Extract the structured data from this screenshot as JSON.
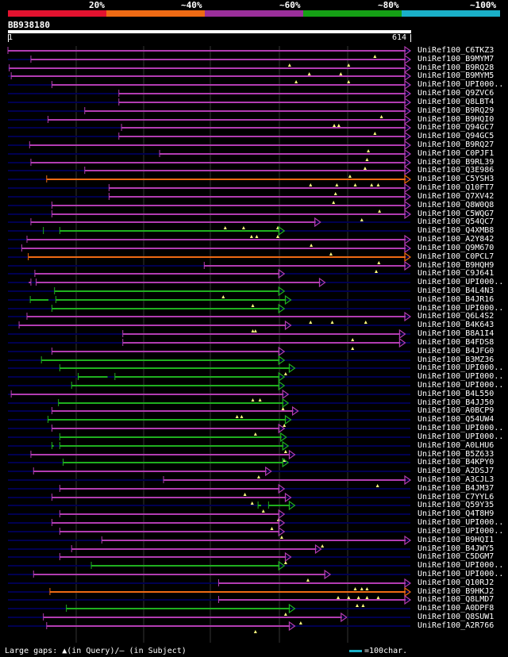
{
  "legend": {
    "labels": [
      "20%",
      "~40%",
      "~60%",
      "~80%",
      "~100%"
    ],
    "colors": [
      "#e3122f",
      "#ee6a14",
      "#9b2f9b",
      "#15a015",
      "#1ab0c8"
    ]
  },
  "query": {
    "id": "BB938180",
    "start": "1",
    "end": "614",
    "length": 614
  },
  "colors": {
    "purple": "#b23cb2",
    "orange": "#ee6a14",
    "green": "#1fb01f",
    "gap": "#ffff80",
    "background_line": "#000050"
  },
  "hits": [
    {
      "label": "UniRef100_C6TKZ3",
      "color": "purple",
      "segments": [
        [
          1,
          614
        ]
      ],
      "gaps": [
        560
      ]
    },
    {
      "label": "UniRef100_B9MYM7",
      "color": "purple",
      "segments": [
        [
          36,
          614
        ]
      ],
      "gaps": [
        430,
        520
      ]
    },
    {
      "label": "UniRef100_B9RQ28",
      "color": "purple",
      "segments": [
        [
          3,
          614
        ]
      ],
      "gaps": [
        460,
        508
      ]
    },
    {
      "label": "UniRef100_B9MYM5",
      "color": "purple",
      "segments": [
        [
          6,
          614
        ]
      ],
      "gaps": [
        440,
        520
      ]
    },
    {
      "label": "UniRef100_UPI000..",
      "color": "purple",
      "segments": [
        [
          68,
          614
        ]
      ],
      "gaps": []
    },
    {
      "label": "UniRef100_Q9ZVC6",
      "color": "purple",
      "segments": [
        [
          170,
          614
        ]
      ],
      "gaps": []
    },
    {
      "label": "UniRef100_Q8LBT4",
      "color": "purple",
      "segments": [
        [
          170,
          614
        ]
      ],
      "gaps": []
    },
    {
      "label": "UniRef100_B9RQ29",
      "color": "purple",
      "segments": [
        [
          118,
          614
        ]
      ],
      "gaps": [
        570
      ]
    },
    {
      "label": "UniRef100_B9HQI0",
      "color": "purple",
      "segments": [
        [
          62,
          614
        ]
      ],
      "gaps": [
        498,
        505
      ]
    },
    {
      "label": "UniRef100_Q94GC7",
      "color": "purple",
      "segments": [
        [
          174,
          614
        ]
      ],
      "gaps": [
        560
      ]
    },
    {
      "label": "UniRef100_Q94GC5",
      "color": "purple",
      "segments": [
        [
          170,
          614
        ]
      ],
      "gaps": []
    },
    {
      "label": "UniRef100_B9RQ27",
      "color": "purple",
      "segments": [
        [
          34,
          614
        ]
      ],
      "gaps": [
        550
      ]
    },
    {
      "label": "UniRef100_C0PJF1",
      "color": "purple",
      "segments": [
        [
          232,
          614
        ]
      ],
      "gaps": [
        548
      ]
    },
    {
      "label": "UniRef100_B9RL39",
      "color": "purple",
      "segments": [
        [
          36,
          614
        ]
      ],
      "gaps": [
        545
      ]
    },
    {
      "label": "UniRef100_Q3E986",
      "color": "purple",
      "segments": [
        [
          118,
          614
        ]
      ],
      "gaps": [
        522
      ]
    },
    {
      "label": "UniRef100_C5YSH3",
      "color": "orange",
      "segments": [
        [
          60,
          614
        ]
      ],
      "gaps": [
        462,
        502,
        530,
        555,
        565
      ]
    },
    {
      "label": "UniRef100_Q10FT7",
      "color": "purple",
      "segments": [
        [
          155,
          614
        ]
      ],
      "gaps": [
        500
      ]
    },
    {
      "label": "UniRef100_Q7XV42",
      "color": "purple",
      "segments": [
        [
          155,
          614
        ]
      ],
      "gaps": [
        497
      ]
    },
    {
      "label": "UniRef100_Q8W0Q8",
      "color": "purple",
      "segments": [
        [
          68,
          614
        ]
      ],
      "gaps": [
        567
      ]
    },
    {
      "label": "UniRef100_C5WQG7",
      "color": "purple",
      "segments": [
        [
          68,
          614
        ]
      ],
      "gaps": [
        540
      ]
    },
    {
      "label": "UniRef100_Q54QC7",
      "color": "purple",
      "segments": [
        [
          36,
          477
        ]
      ],
      "gaps": [
        332,
        360,
        412
      ]
    },
    {
      "label": "UniRef100_Q4XMB8",
      "color": "green",
      "segments": [
        [
          55,
          62
        ],
        [
          80,
          422
        ]
      ],
      "gaps": [
        372,
        380,
        412
      ]
    },
    {
      "label": "UniRef100_A2Y842",
      "color": "purple",
      "segments": [
        [
          30,
          614
        ]
      ],
      "gaps": [
        463
      ]
    },
    {
      "label": "UniRef100_Q9M670",
      "color": "purple",
      "segments": [
        [
          22,
          614
        ]
      ],
      "gaps": [
        493
      ]
    },
    {
      "label": "UniRef100_C0PCL7",
      "color": "orange",
      "segments": [
        [
          32,
          614
        ]
      ],
      "gaps": [
        566
      ]
    },
    {
      "label": "UniRef100_B9HQH9",
      "color": "purple",
      "segments": [
        [
          300,
          614
        ]
      ],
      "gaps": [
        562
      ]
    },
    {
      "label": "UniRef100_C9J641",
      "color": "purple",
      "segments": [
        [
          42,
          422
        ]
      ],
      "gaps": []
    },
    {
      "label": "UniRef100_UPI000..",
      "color": "purple",
      "segments": [
        [
          36,
          40
        ],
        [
          44,
          484
        ]
      ],
      "gaps": []
    },
    {
      "label": "UniRef100_B4L4N3",
      "color": "green",
      "segments": [
        [
          72,
          422
        ]
      ],
      "gaps": [
        329
      ]
    },
    {
      "label": "UniRef100_B4JR16",
      "color": "green",
      "segments": [
        [
          35,
          70
        ],
        [
          74,
          432
        ]
      ],
      "gaps": [
        374
      ]
    },
    {
      "label": "UniRef100_UPI000..",
      "color": "green",
      "segments": [
        [
          68,
          422
        ]
      ],
      "gaps": []
    },
    {
      "label": "UniRef100_Q6L4S2",
      "color": "purple",
      "segments": [
        [
          30,
          614
        ]
      ],
      "gaps": [
        462,
        495,
        546
      ]
    },
    {
      "label": "UniRef100_B4K643",
      "color": "purple",
      "segments": [
        [
          18,
          432
        ]
      ],
      "gaps": [
        374,
        378
      ]
    },
    {
      "label": "UniRef100_B8A1I4",
      "color": "purple",
      "segments": [
        [
          176,
          606
        ]
      ],
      "gaps": [
        526
      ]
    },
    {
      "label": "UniRef100_B4FDS8",
      "color": "purple",
      "segments": [
        [
          176,
          606
        ]
      ],
      "gaps": [
        526
      ]
    },
    {
      "label": "UniRef100_B4JFG0",
      "color": "purple",
      "segments": [
        [
          68,
          422
        ]
      ],
      "gaps": []
    },
    {
      "label": "UniRef100_B3MZ36",
      "color": "green",
      "segments": [
        [
          52,
          422
        ]
      ],
      "gaps": []
    },
    {
      "label": "UniRef100_UPI000..",
      "color": "green",
      "segments": [
        [
          80,
          438
        ]
      ],
      "gaps": [
        424
      ]
    },
    {
      "label": "UniRef100_UPI000..",
      "color": "green",
      "segments": [
        [
          108,
          160
        ],
        [
          164,
          422
        ]
      ],
      "gaps": []
    },
    {
      "label": "UniRef100_UPI000..",
      "color": "green",
      "segments": [
        [
          98,
          422
        ]
      ],
      "gaps": []
    },
    {
      "label": "UniRef100_B4L550",
      "color": "purple",
      "segments": [
        [
          6,
          428
        ]
      ],
      "gaps": [
        374,
        385
      ]
    },
    {
      "label": "UniRef100_B4JJ50",
      "color": "green",
      "segments": [
        [
          78,
          428
        ]
      ],
      "gaps": [
        420
      ]
    },
    {
      "label": "UniRef100_A0BCP9",
      "color": "purple",
      "segments": [
        [
          68,
          443
        ]
      ],
      "gaps": [
        350,
        357
      ]
    },
    {
      "label": "UniRef100_Q54UW4",
      "color": "green",
      "segments": [
        [
          62,
          432
        ]
      ],
      "gaps": [
        422
      ]
    },
    {
      "label": "UniRef100_UPI000..",
      "color": "purple",
      "segments": [
        [
          68,
          422
        ]
      ],
      "gaps": [
        378
      ]
    },
    {
      "label": "UniRef100_UPI000..",
      "color": "green",
      "segments": [
        [
          80,
          425
        ]
      ],
      "gaps": []
    },
    {
      "label": "UniRef100_A0LHU6",
      "color": "green",
      "segments": [
        [
          68,
          78
        ],
        [
          80,
          428
        ]
      ],
      "gaps": [
        424
      ]
    },
    {
      "label": "UniRef100_B5Z633",
      "color": "purple",
      "segments": [
        [
          36,
          438
        ]
      ],
      "gaps": [
        422
      ]
    },
    {
      "label": "UniRef100_B4KPY0",
      "color": "green",
      "segments": [
        [
          85,
          428
        ]
      ],
      "gaps": []
    },
    {
      "label": "UniRef100_A2DSJ7",
      "color": "purple",
      "segments": [
        [
          40,
          402
        ]
      ],
      "gaps": [
        383
      ]
    },
    {
      "label": "UniRef100_A3CJL3",
      "color": "purple",
      "segments": [
        [
          238,
          614
        ]
      ],
      "gaps": [
        564
      ]
    },
    {
      "label": "UniRef100_B4JM37",
      "color": "purple",
      "segments": [
        [
          80,
          422
        ]
      ],
      "gaps": [
        362
      ]
    },
    {
      "label": "UniRef100_C7YYL6",
      "color": "purple",
      "segments": [
        [
          68,
          432
        ]
      ],
      "gaps": [
        373
      ]
    },
    {
      "label": "UniRef100_Q59Y35",
      "color": "green",
      "segments": [
        [
          382,
          394
        ],
        [
          398,
          438
        ]
      ],
      "gaps": [
        390
      ]
    },
    {
      "label": "UniRef100_Q4T8H9",
      "color": "purple",
      "segments": [
        [
          80,
          422
        ]
      ],
      "gaps": [
        413
      ]
    },
    {
      "label": "UniRef100_UPI000..",
      "color": "purple",
      "segments": [
        [
          68,
          422
        ]
      ],
      "gaps": [
        403
      ]
    },
    {
      "label": "UniRef100_UPI000..",
      "color": "purple",
      "segments": [
        [
          80,
          422
        ]
      ],
      "gaps": [
        418
      ]
    },
    {
      "label": "UniRef100_B9HQI1",
      "color": "purple",
      "segments": [
        [
          144,
          614
        ]
      ],
      "gaps": [
        480
      ]
    },
    {
      "label": "UniRef100_B4JWY5",
      "color": "purple",
      "segments": [
        [
          98,
          478
        ]
      ],
      "gaps": []
    },
    {
      "label": "UniRef100_C5DGM7",
      "color": "purple",
      "segments": [
        [
          80,
          432
        ]
      ],
      "gaps": [
        424
      ]
    },
    {
      "label": "UniRef100_UPI000..",
      "color": "green",
      "segments": [
        [
          128,
          422
        ]
      ],
      "gaps": []
    },
    {
      "label": "UniRef100_UPI000..",
      "color": "purple",
      "segments": [
        [
          40,
          492
        ]
      ],
      "gaps": [
        458
      ]
    },
    {
      "label": "UniRef100_Q10RJ2",
      "color": "purple",
      "segments": [
        [
          322,
          614
        ]
      ],
      "gaps": [
        530,
        540,
        548
      ]
    },
    {
      "label": "UniRef100_B9HKJ2",
      "color": "orange",
      "segments": [
        [
          65,
          614
        ]
      ],
      "gaps": [
        504,
        520,
        535,
        548,
        565
      ]
    },
    {
      "label": "UniRef100_Q8LMD7",
      "color": "purple",
      "segments": [
        [
          322,
          614
        ]
      ],
      "gaps": [
        533,
        542
      ]
    },
    {
      "label": "UniRef100_A0DPF8",
      "color": "green",
      "segments": [
        [
          90,
          438
        ]
      ],
      "gaps": [
        424
      ]
    },
    {
      "label": "UniRef100_Q8SUW1",
      "color": "purple",
      "segments": [
        [
          55,
          517
        ]
      ],
      "gaps": [
        447
      ]
    },
    {
      "label": "UniRef100_A2R766",
      "color": "purple",
      "segments": [
        [
          60,
          438
        ]
      ],
      "gaps": [
        378
      ]
    }
  ],
  "footer": {
    "gaps_text": "Large gaps: ▲(in Query)/— (in Subject)",
    "scale_text": "=100char."
  }
}
